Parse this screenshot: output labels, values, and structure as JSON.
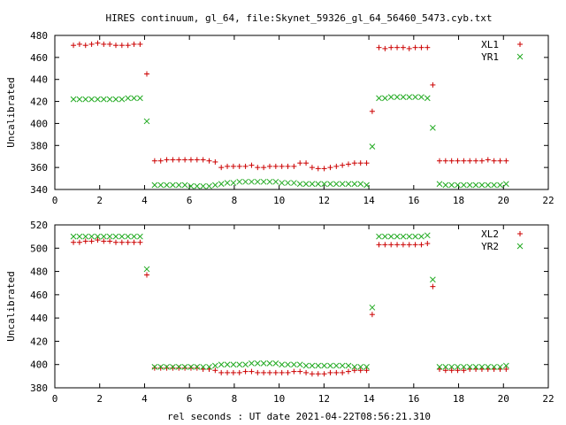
{
  "figure_title": "HIRES continuum, gl_64, file:Skynet_59326_gl_64_56460_5473.cyb.txt",
  "xlabel": "rel seconds : UT date 2021-04-22T08:56:21.310",
  "colors": {
    "plus": "#cc0000",
    "cross": "#22aa22"
  },
  "chart_data": [
    {
      "type": "scatter",
      "ylabel": "Uncalibrated",
      "xlim": [
        0,
        22
      ],
      "ylim": [
        340,
        480
      ],
      "xticks": [
        0,
        2,
        4,
        6,
        8,
        10,
        12,
        14,
        16,
        18,
        20,
        22
      ],
      "yticks": [
        340,
        360,
        380,
        400,
        420,
        440,
        460,
        480
      ],
      "legend_position": "top-right",
      "series": [
        {
          "name": "XL1",
          "marker": "plus",
          "x": [
            0.83,
            1.1,
            1.37,
            1.64,
            1.91,
            2.18,
            2.45,
            2.72,
            2.99,
            3.26,
            3.53,
            3.8,
            4.1,
            4.45,
            4.72,
            4.99,
            5.26,
            5.53,
            5.8,
            6.07,
            6.34,
            6.61,
            6.88,
            7.15,
            7.42,
            7.69,
            7.96,
            8.23,
            8.5,
            8.77,
            9.04,
            9.31,
            9.58,
            9.85,
            10.12,
            10.39,
            10.66,
            10.93,
            11.2,
            11.47,
            11.74,
            12.01,
            12.28,
            12.55,
            12.82,
            13.09,
            13.36,
            13.63,
            13.9,
            14.15,
            14.45,
            14.72,
            14.99,
            15.26,
            15.53,
            15.8,
            16.07,
            16.34,
            16.61,
            16.85,
            17.15,
            17.42,
            17.69,
            17.96,
            18.23,
            18.5,
            18.77,
            19.04,
            19.31,
            19.58,
            19.85,
            20.12
          ],
          "y": [
            471,
            472,
            471,
            472,
            473,
            472,
            472,
            471,
            471,
            471,
            472,
            472,
            445,
            366,
            366,
            367,
            367,
            367,
            367,
            367,
            367,
            367,
            366,
            365,
            360,
            361,
            361,
            361,
            361,
            362,
            360,
            360,
            361,
            361,
            361,
            361,
            361,
            364,
            364,
            360,
            359,
            359,
            360,
            361,
            362,
            363,
            364,
            364,
            364,
            411,
            469,
            468,
            469,
            469,
            469,
            468,
            469,
            469,
            469,
            435,
            366,
            366,
            366,
            366,
            366,
            366,
            366,
            366,
            367,
            366,
            366,
            366
          ]
        },
        {
          "name": "YR1",
          "marker": "cross",
          "x": [
            0.83,
            1.1,
            1.37,
            1.64,
            1.91,
            2.18,
            2.45,
            2.72,
            2.99,
            3.26,
            3.53,
            3.8,
            4.1,
            4.45,
            4.72,
            4.99,
            5.26,
            5.53,
            5.8,
            6.07,
            6.34,
            6.61,
            6.88,
            7.15,
            7.42,
            7.69,
            7.96,
            8.23,
            8.5,
            8.77,
            9.04,
            9.31,
            9.58,
            9.85,
            10.12,
            10.39,
            10.66,
            10.93,
            11.2,
            11.47,
            11.74,
            12.01,
            12.28,
            12.55,
            12.82,
            13.09,
            13.36,
            13.63,
            13.9,
            14.15,
            14.45,
            14.72,
            14.99,
            15.26,
            15.53,
            15.8,
            16.07,
            16.34,
            16.61,
            16.85,
            17.15,
            17.42,
            17.69,
            17.96,
            18.23,
            18.5,
            18.77,
            19.04,
            19.31,
            19.58,
            19.85,
            20.12
          ],
          "y": [
            422,
            422,
            422,
            422,
            422,
            422,
            422,
            422,
            422,
            423,
            423,
            423,
            402,
            344,
            344,
            344,
            344,
            344,
            344,
            343,
            343,
            343,
            343,
            344,
            345,
            346,
            346,
            347,
            347,
            347,
            347,
            347,
            347,
            347,
            346,
            346,
            346,
            345,
            345,
            345,
            345,
            345,
            345,
            345,
            345,
            345,
            345,
            345,
            344,
            379,
            423,
            423,
            424,
            424,
            424,
            424,
            424,
            424,
            423,
            396,
            345,
            344,
            344,
            344,
            344,
            344,
            344,
            344,
            344,
            344,
            344,
            345
          ]
        }
      ]
    },
    {
      "type": "scatter",
      "ylabel": "Uncalibrated",
      "xlim": [
        0,
        22
      ],
      "ylim": [
        380,
        520
      ],
      "xticks": [
        0,
        2,
        4,
        6,
        8,
        10,
        12,
        14,
        16,
        18,
        20,
        22
      ],
      "yticks": [
        380,
        400,
        420,
        440,
        460,
        480,
        500,
        520
      ],
      "legend_position": "top-right",
      "series": [
        {
          "name": "XL2",
          "marker": "plus",
          "x": [
            0.83,
            1.1,
            1.37,
            1.64,
            1.91,
            2.18,
            2.45,
            2.72,
            2.99,
            3.26,
            3.53,
            3.8,
            4.1,
            4.45,
            4.72,
            4.99,
            5.26,
            5.53,
            5.8,
            6.07,
            6.34,
            6.61,
            6.88,
            7.15,
            7.42,
            7.69,
            7.96,
            8.23,
            8.5,
            8.77,
            9.04,
            9.31,
            9.58,
            9.85,
            10.12,
            10.39,
            10.66,
            10.93,
            11.2,
            11.47,
            11.74,
            12.01,
            12.28,
            12.55,
            12.82,
            13.09,
            13.36,
            13.63,
            13.9,
            14.15,
            14.45,
            14.72,
            14.99,
            15.26,
            15.53,
            15.8,
            16.07,
            16.34,
            16.61,
            16.85,
            17.15,
            17.42,
            17.69,
            17.96,
            18.23,
            18.5,
            18.77,
            19.04,
            19.31,
            19.58,
            19.85,
            20.12
          ],
          "y": [
            505,
            505,
            506,
            506,
            507,
            506,
            506,
            505,
            505,
            505,
            505,
            505,
            477,
            397,
            397,
            397,
            397,
            397,
            397,
            397,
            397,
            396,
            396,
            395,
            393,
            393,
            393,
            393,
            394,
            394,
            393,
            393,
            393,
            393,
            393,
            393,
            394,
            394,
            393,
            392,
            392,
            392,
            393,
            393,
            393,
            394,
            395,
            395,
            395,
            443,
            503,
            503,
            503,
            503,
            503,
            503,
            503,
            503,
            504,
            467,
            396,
            395,
            395,
            395,
            395,
            396,
            396,
            396,
            396,
            396,
            396,
            396
          ]
        },
        {
          "name": "YR2",
          "marker": "cross",
          "x": [
            0.83,
            1.1,
            1.37,
            1.64,
            1.91,
            2.18,
            2.45,
            2.72,
            2.99,
            3.26,
            3.53,
            3.8,
            4.1,
            4.45,
            4.72,
            4.99,
            5.26,
            5.53,
            5.8,
            6.07,
            6.34,
            6.61,
            6.88,
            7.15,
            7.42,
            7.69,
            7.96,
            8.23,
            8.5,
            8.77,
            9.04,
            9.31,
            9.58,
            9.85,
            10.12,
            10.39,
            10.66,
            10.93,
            11.2,
            11.47,
            11.74,
            12.01,
            12.28,
            12.55,
            12.82,
            13.09,
            13.36,
            13.63,
            13.9,
            14.15,
            14.45,
            14.72,
            14.99,
            15.26,
            15.53,
            15.8,
            16.07,
            16.34,
            16.61,
            16.85,
            17.15,
            17.42,
            17.69,
            17.96,
            18.23,
            18.5,
            18.77,
            19.04,
            19.31,
            19.58,
            19.85,
            20.12
          ],
          "y": [
            510,
            510,
            510,
            510,
            510,
            510,
            510,
            510,
            510,
            510,
            510,
            510,
            482,
            398,
            398,
            398,
            398,
            398,
            398,
            398,
            398,
            398,
            398,
            399,
            400,
            400,
            400,
            400,
            400,
            401,
            401,
            401,
            401,
            401,
            400,
            400,
            400,
            400,
            399,
            399,
            399,
            399,
            399,
            399,
            399,
            399,
            398,
            398,
            398,
            449,
            510,
            510,
            510,
            510,
            510,
            510,
            510,
            510,
            511,
            473,
            398,
            398,
            398,
            398,
            398,
            398,
            398,
            398,
            398,
            398,
            398,
            399
          ]
        }
      ]
    }
  ]
}
